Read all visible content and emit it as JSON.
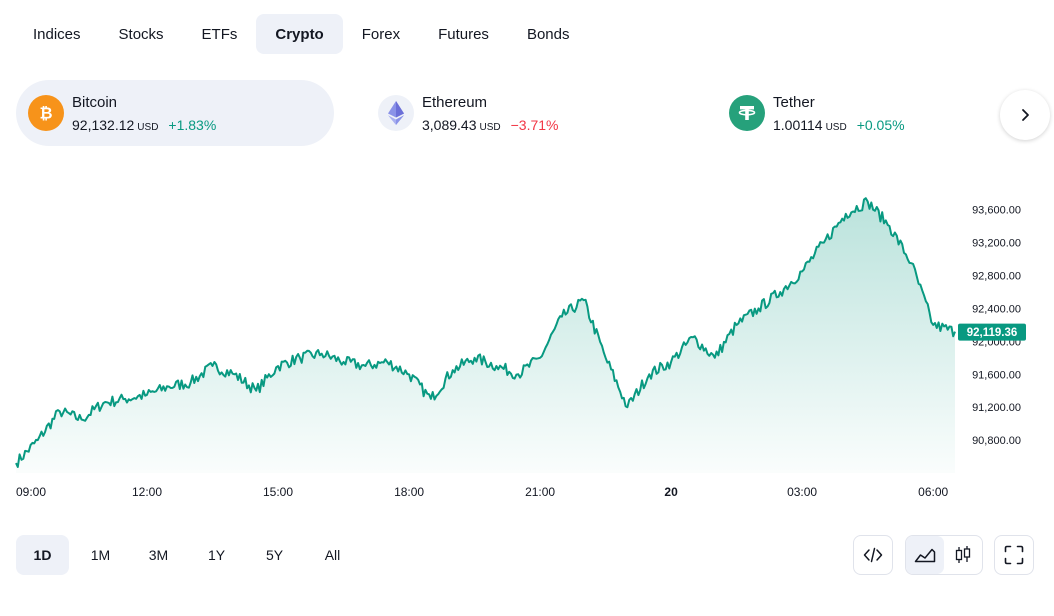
{
  "tabs": [
    {
      "label": "Indices",
      "active": false
    },
    {
      "label": "Stocks",
      "active": false
    },
    {
      "label": "ETFs",
      "active": false
    },
    {
      "label": "Crypto",
      "active": true
    },
    {
      "label": "Forex",
      "active": false
    },
    {
      "label": "Futures",
      "active": false
    },
    {
      "label": "Bonds",
      "active": false
    }
  ],
  "cards": [
    {
      "name": "Bitcoin",
      "price": "92,132.12",
      "currency": "USD",
      "change": "+1.83%",
      "direction": "up",
      "icon": "bitcoin-icon",
      "color": "#f7931a"
    },
    {
      "name": "Ethereum",
      "price": "3,089.43",
      "currency": "USD",
      "change": "−3.71%",
      "direction": "down",
      "icon": "ethereum-icon",
      "color": "#627eea"
    },
    {
      "name": "Tether",
      "price": "1.00114",
      "currency": "USD",
      "change": "+0.05%",
      "direction": "up",
      "icon": "tether-icon",
      "color": "#26a17b"
    }
  ],
  "chart_data": {
    "type": "area",
    "series": [
      {
        "x": [
          "09:00",
          "09:30",
          "10:00",
          "10:30",
          "11:00",
          "11:30",
          "12:00",
          "12:30",
          "13:00",
          "13:30",
          "14:00",
          "14:30",
          "15:00",
          "15:30",
          "16:00",
          "16:30",
          "17:00",
          "17:30",
          "18:00",
          "18:30",
          "19:00",
          "19:30",
          "20:00",
          "20:30",
          "21:00",
          "21:30",
          "22:00",
          "22:30",
          "23:00",
          "23:30",
          "00:00",
          "00:30",
          "01:00",
          "01:30",
          "02:00",
          "02:30",
          "03:00",
          "03:30",
          "04:00",
          "04:30",
          "05:00",
          "05:30",
          "06:00",
          "06:30"
        ],
        "values": [
          90520,
          90800,
          91150,
          91050,
          91250,
          91300,
          91350,
          91450,
          91500,
          91700,
          91600,
          91400,
          91700,
          91800,
          91850,
          91750,
          91700,
          91750,
          91600,
          91300,
          91650,
          91800,
          91700,
          91600,
          91800,
          92300,
          92500,
          91800,
          91200,
          91600,
          91750,
          92050,
          91800,
          92200,
          92400,
          92600,
          92850,
          93200,
          93550,
          93700,
          93400,
          92950,
          92200,
          92119
        ]
      }
    ],
    "last_value_label": "92,119.36",
    "x_ticks": [
      "09:00",
      "12:00",
      "15:00",
      "18:00",
      "21:00",
      "20",
      "03:00",
      "06:00"
    ],
    "y_ticks": [
      "93,600.00",
      "93,200.00",
      "92,800.00",
      "92,400.00",
      "92,000.00",
      "91,600.00",
      "91,200.00",
      "90,800.00"
    ],
    "ylim": [
      90400,
      93900
    ],
    "line_color": "#089981",
    "grid": false,
    "title": "",
    "xlabel": "",
    "ylabel": ""
  },
  "ranges": [
    {
      "label": "1D",
      "active": true
    },
    {
      "label": "1M",
      "active": false
    },
    {
      "label": "3M",
      "active": false
    },
    {
      "label": "1Y",
      "active": false
    },
    {
      "label": "5Y",
      "active": false
    },
    {
      "label": "All",
      "active": false
    }
  ],
  "tools": [
    {
      "icon": "embed-code-icon"
    },
    {
      "icon": "area-chart-icon",
      "active": true
    },
    {
      "icon": "candles-icon"
    },
    {
      "icon": "fullscreen-icon"
    }
  ],
  "colors": {
    "accent": "#089981",
    "negative": "#f23645",
    "active_bg": "#eef1f8"
  }
}
